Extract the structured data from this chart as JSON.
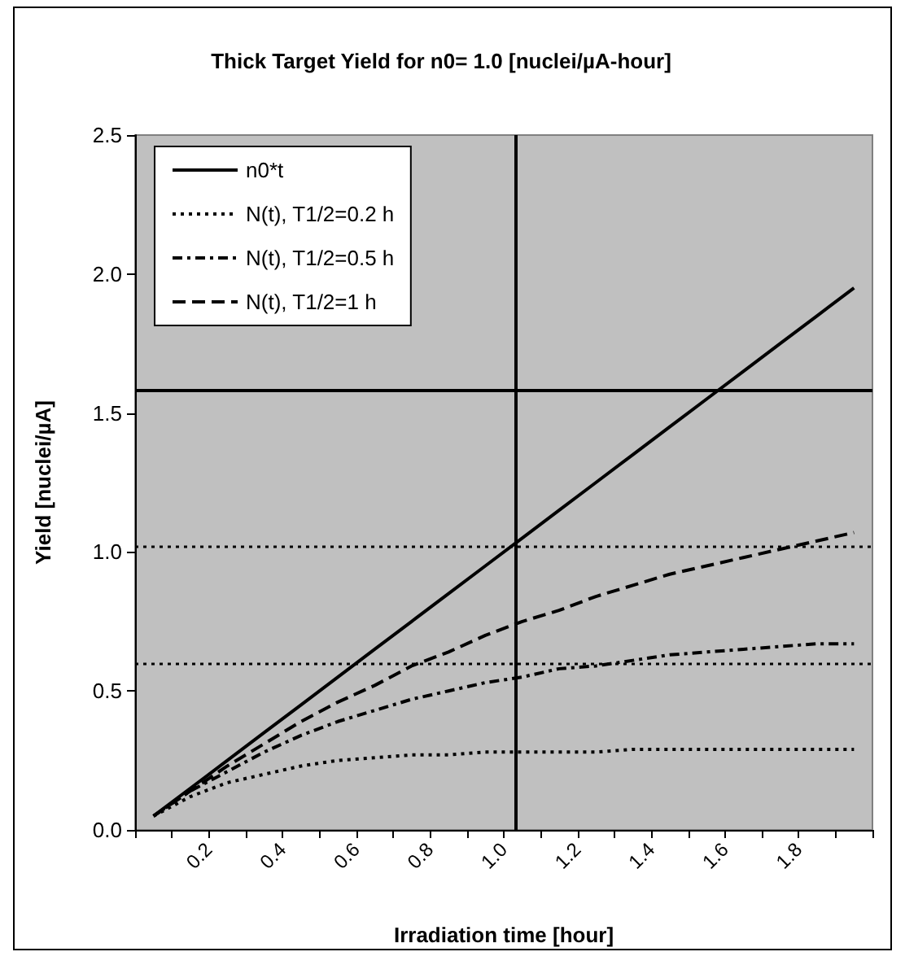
{
  "chart_data": {
    "type": "line",
    "title": "Thick Target Yield for n0= 1.0 [nuclei/µA-hour]",
    "xlabel": "Irradiation time [hour]",
    "ylabel": "Yield [nuclei/µA]",
    "x": [
      0.05,
      0.15,
      0.25,
      0.35,
      0.45,
      0.55,
      0.65,
      0.75,
      0.85,
      0.95,
      1.05,
      1.15,
      1.25,
      1.35,
      1.45,
      1.55,
      1.65,
      1.75,
      1.85,
      1.95
    ],
    "series": [
      {
        "name": "n0*t",
        "color": "#000000",
        "line_style": "solid",
        "values": [
          0.05,
          0.15,
          0.25,
          0.35,
          0.45,
          0.55,
          0.65,
          0.75,
          0.85,
          0.95,
          1.05,
          1.15,
          1.25,
          1.35,
          1.45,
          1.55,
          1.65,
          1.75,
          1.85,
          1.95
        ]
      },
      {
        "name": "N(t), T1/2=0.2 h",
        "color": "#000000",
        "line_style": "dotted",
        "values": [
          0.05,
          0.12,
          0.17,
          0.2,
          0.23,
          0.25,
          0.26,
          0.27,
          0.27,
          0.28,
          0.28,
          0.28,
          0.28,
          0.29,
          0.29,
          0.29,
          0.29,
          0.29,
          0.29,
          0.29
        ]
      },
      {
        "name": "N(t), T1/2=0.5 h",
        "color": "#000000",
        "line_style": "dashdot",
        "values": [
          0.05,
          0.14,
          0.21,
          0.28,
          0.34,
          0.39,
          0.43,
          0.47,
          0.5,
          0.53,
          0.55,
          0.58,
          0.59,
          0.61,
          0.63,
          0.64,
          0.65,
          0.66,
          0.67,
          0.67
        ]
      },
      {
        "name": "N(t), T1/2=1 h",
        "color": "#000000",
        "line_style": "dashed",
        "values": [
          0.05,
          0.14,
          0.23,
          0.31,
          0.39,
          0.46,
          0.52,
          0.59,
          0.64,
          0.7,
          0.75,
          0.79,
          0.84,
          0.88,
          0.92,
          0.95,
          0.98,
          1.01,
          1.04,
          1.07
        ]
      }
    ],
    "xlim": [
      0,
      2
    ],
    "xticks": [
      {
        "value": 0,
        "label": null
      },
      {
        "value": 0.1,
        "label": null
      },
      0.2,
      {
        "value": 0.3,
        "label": null
      },
      0.4,
      {
        "value": 0.5,
        "label": null
      },
      0.6,
      {
        "value": 0.7,
        "label": null
      },
      0.8,
      {
        "value": 0.9,
        "label": null
      },
      {
        "value": 1,
        "label": "1.0"
      },
      {
        "value": 1.1,
        "label": null
      },
      1.2,
      {
        "value": 1.3,
        "label": null
      },
      1.4,
      {
        "value": 1.5,
        "label": null
      },
      1.6,
      {
        "value": 1.7,
        "label": null
      },
      1.8,
      {
        "value": 1.9,
        "label": null
      },
      {
        "value": 2,
        "label": null
      }
    ],
    "ylim": [
      0,
      2.5
    ],
    "yticks": [
      {
        "value": 0,
        "label": "0.0"
      },
      0.5,
      {
        "value": 1,
        "label": "1.0"
      },
      1.5,
      {
        "value": 2,
        "label": "2.0"
      },
      2.5
    ],
    "ref_lines": [
      {
        "axis": "y",
        "value": 1.58,
        "line_style": "solid",
        "color": "#000000"
      },
      {
        "axis": "y",
        "value": 1.02,
        "line_style": "dotted",
        "color": "#000000"
      },
      {
        "axis": "y",
        "value": 0.6,
        "line_style": "dotted",
        "color": "#000000"
      },
      {
        "axis": "x",
        "value": 1.03,
        "line_style": "solid",
        "color": "#000000"
      }
    ],
    "grid": false,
    "legend": "top left",
    "marker": "none"
  }
}
